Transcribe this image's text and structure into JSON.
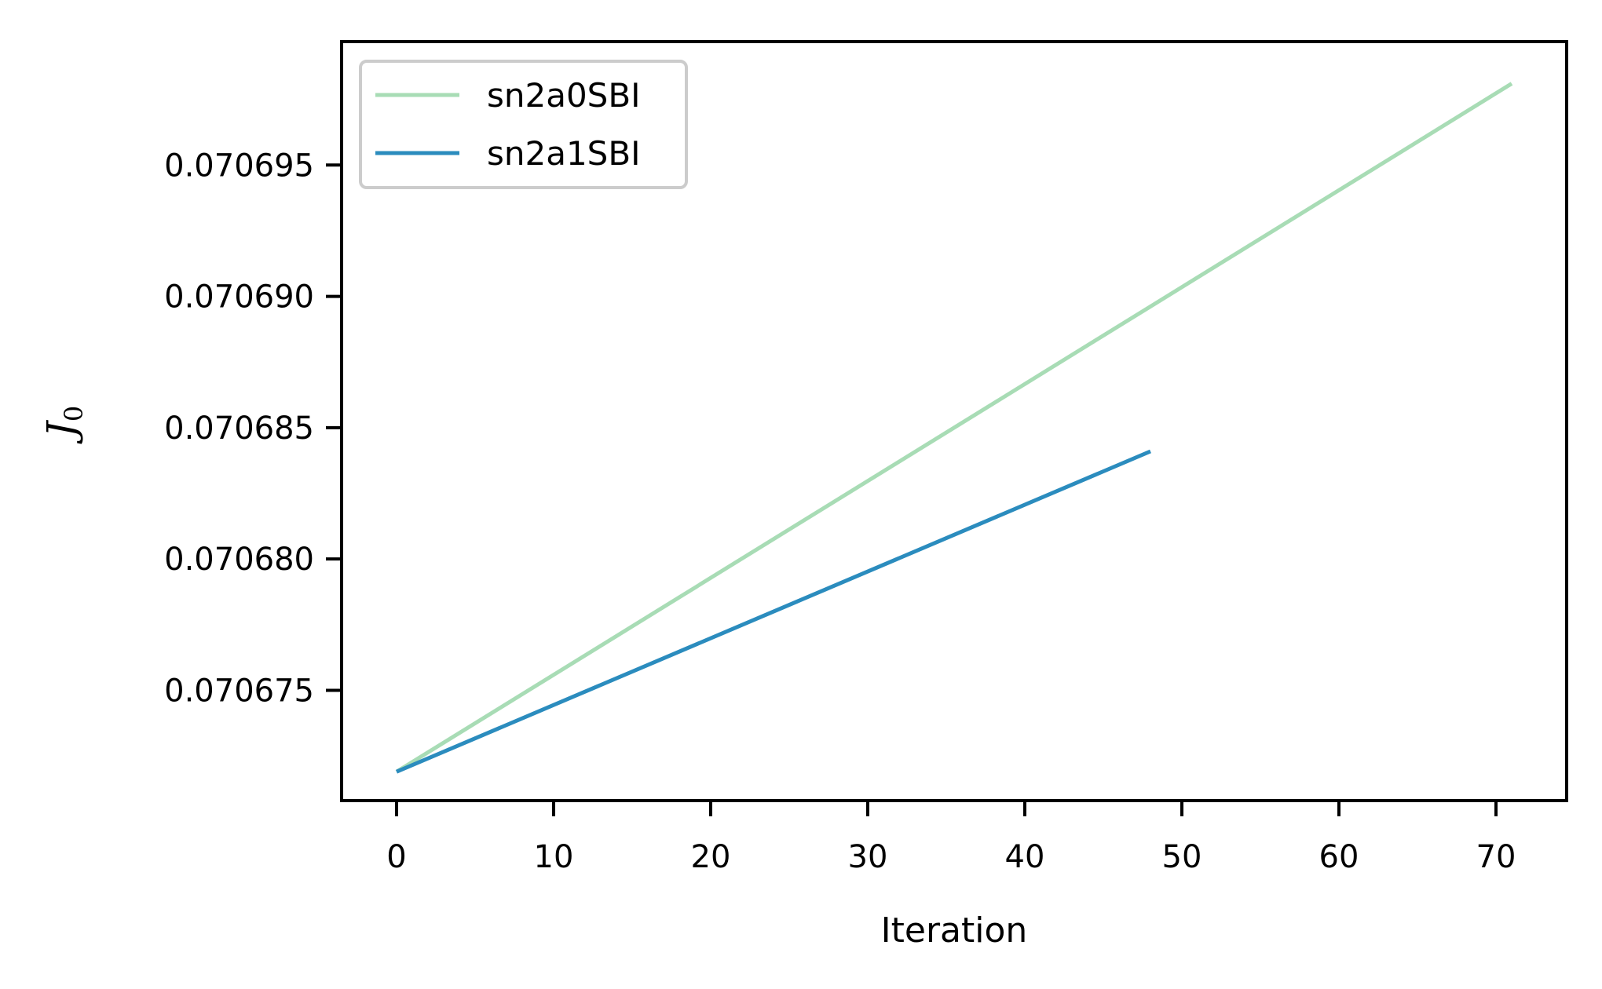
{
  "chart_data": {
    "type": "line",
    "xlabel": "Iteration",
    "ylabel": "J",
    "ylabel_subscript": "0",
    "xlim": [
      -3.5,
      74.5
    ],
    "ylim": [
      0.0706708,
      0.0706997
    ],
    "x_ticks": [
      0,
      10,
      20,
      30,
      40,
      50,
      60,
      70
    ],
    "x_tick_labels": [
      "0",
      "10",
      "20",
      "30",
      "40",
      "50",
      "60",
      "70"
    ],
    "y_ticks": [
      0.070675,
      0.07068,
      0.070685,
      0.07069,
      0.070695
    ],
    "y_tick_labels": [
      "0.070675",
      "0.070680",
      "0.070685",
      "0.070690",
      "0.070695"
    ],
    "grid": false,
    "legend_position": "upper-left",
    "series": [
      {
        "name": "sn2a0SBI",
        "color": "#a8dcb5",
        "x": [
          0,
          71
        ],
        "y": [
          0.0706719,
          0.0706981
        ]
      },
      {
        "name": "sn2a1SBI",
        "color": "#2b8cbe",
        "x": [
          0,
          48
        ],
        "y": [
          0.0706719,
          0.0706841
        ]
      }
    ]
  }
}
